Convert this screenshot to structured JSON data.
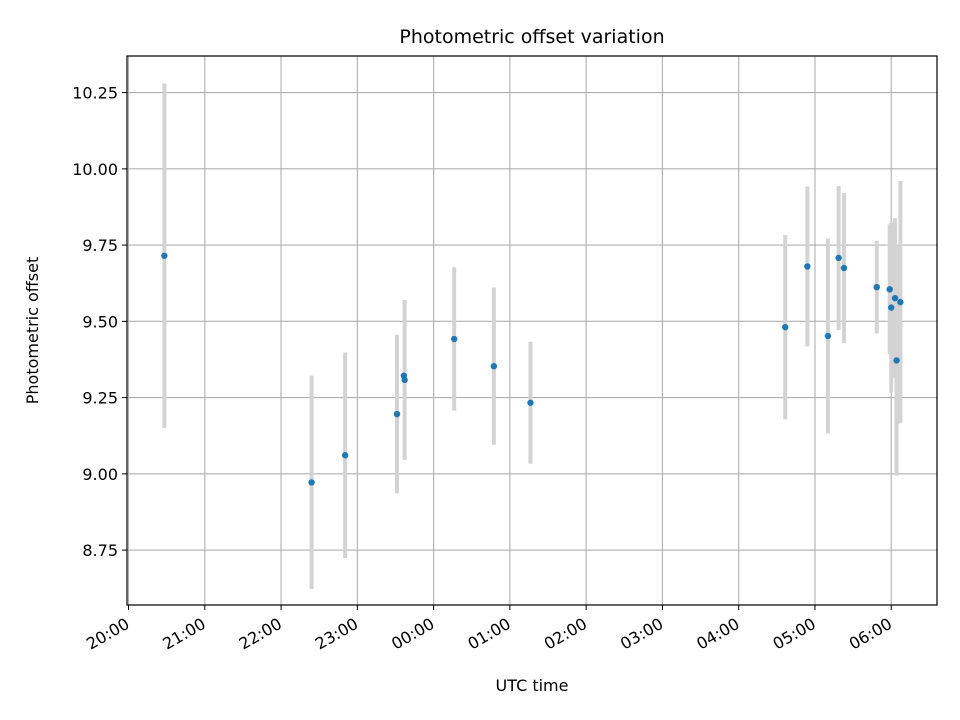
{
  "chart_data": {
    "type": "scatter",
    "title": "Photometric offset variation",
    "xlabel": "UTC time",
    "ylabel": "Photometric offset",
    "x_ticks": [
      {
        "label": "20:00",
        "hours": 0
      },
      {
        "label": "21:00",
        "hours": 1
      },
      {
        "label": "22:00",
        "hours": 2
      },
      {
        "label": "23:00",
        "hours": 3
      },
      {
        "label": "00:00",
        "hours": 4
      },
      {
        "label": "01:00",
        "hours": 5
      },
      {
        "label": "02:00",
        "hours": 6
      },
      {
        "label": "03:00",
        "hours": 7
      },
      {
        "label": "04:00",
        "hours": 8
      },
      {
        "label": "05:00",
        "hours": 9
      },
      {
        "label": "06:00",
        "hours": 10
      }
    ],
    "y_ticks": [
      8.75,
      9.0,
      9.25,
      9.5,
      9.75,
      10.0,
      10.25
    ],
    "y_tick_labels": [
      "8.75",
      "9.00",
      "9.25",
      "9.50",
      "9.75",
      "10.00",
      "10.25"
    ],
    "xlim_hours": [
      -0.02,
      10.6
    ],
    "ylim": [
      8.57,
      10.37
    ],
    "grid": true,
    "point_color": "#1f77b4",
    "errorbar_color": "#d3d3d3",
    "points": [
      {
        "t": "20:28",
        "hours": 0.47,
        "y": 9.715,
        "err": 0.565
      },
      {
        "t": "22:24",
        "hours": 2.4,
        "y": 8.972,
        "err": 0.35
      },
      {
        "t": "22:50",
        "hours": 2.84,
        "y": 9.061,
        "err": 0.337
      },
      {
        "t": "23:31",
        "hours": 3.52,
        "y": 9.196,
        "err": 0.26
      },
      {
        "t": "23:37",
        "hours": 3.61,
        "y": 9.322,
        "err": 0.0
      },
      {
        "t": "23:37",
        "hours": 3.62,
        "y": 9.308,
        "err": 0.262
      },
      {
        "t": "00:16",
        "hours": 4.27,
        "y": 9.442,
        "err": 0.235
      },
      {
        "t": "00:47",
        "hours": 4.79,
        "y": 9.353,
        "err": 0.258
      },
      {
        "t": "01:15",
        "hours": 5.27,
        "y": 9.233,
        "err": 0.2
      },
      {
        "t": "04:36",
        "hours": 8.61,
        "y": 9.481,
        "err": 0.302
      },
      {
        "t": "04:54",
        "hours": 8.9,
        "y": 9.68,
        "err": 0.262
      },
      {
        "t": "05:10",
        "hours": 9.17,
        "y": 9.452,
        "err": 0.32
      },
      {
        "t": "05:19",
        "hours": 9.31,
        "y": 9.708,
        "err": 0.236
      },
      {
        "t": "05:23",
        "hours": 9.38,
        "y": 9.675,
        "err": 0.246
      },
      {
        "t": "05:49",
        "hours": 9.81,
        "y": 9.612,
        "err": 0.152
      },
      {
        "t": "05:58",
        "hours": 9.98,
        "y": 9.605,
        "err": 0.213
      },
      {
        "t": "06:00",
        "hours": 10.0,
        "y": 9.545,
        "err": 0.278
      },
      {
        "t": "06:03",
        "hours": 10.05,
        "y": 9.576,
        "err": 0.262
      },
      {
        "t": "06:04",
        "hours": 10.07,
        "y": 9.372,
        "err": 0.378
      },
      {
        "t": "06:07",
        "hours": 10.12,
        "y": 9.563,
        "err": 0.397
      }
    ]
  }
}
